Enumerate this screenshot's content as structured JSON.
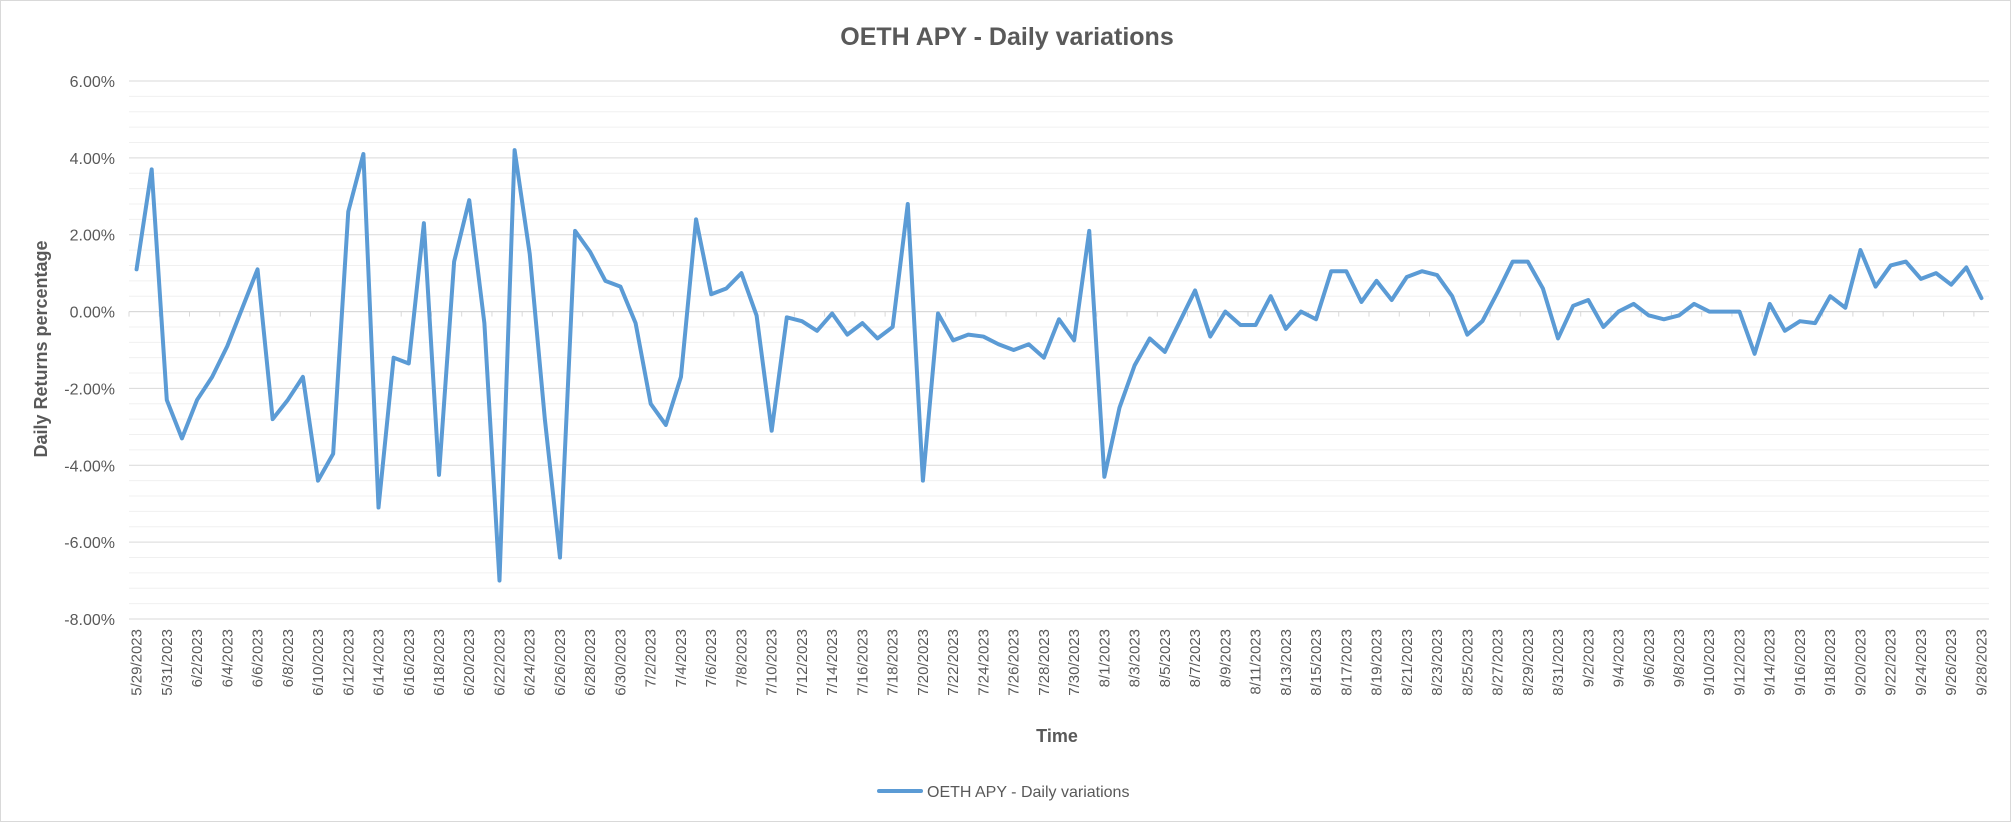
{
  "chart_data": {
    "type": "line",
    "title": "OETH APY - Daily variations",
    "xlabel": "Time",
    "ylabel": "Daily Returns percentage",
    "ylim": [
      -8,
      6
    ],
    "y_ticks": [
      6,
      4,
      2,
      0,
      -2,
      -4,
      -6,
      -8
    ],
    "y_tick_labels": [
      "6.00%",
      "4.00%",
      "2.00%",
      "0.00%",
      "-2.00%",
      "-4.00%",
      "-6.00%",
      "-8.00%"
    ],
    "y_unit": "%",
    "grid": "horizontal major and minor gridlines",
    "legend": "bottom-center",
    "color": "#5B9BD5",
    "x_start": "5/29/2023",
    "x_end": "9/28/2023",
    "x_tick_labels": [
      "5/29/2023",
      "5/31/2023",
      "6/2/2023",
      "6/4/2023",
      "6/6/2023",
      "6/8/2023",
      "6/10/2023",
      "6/12/2023",
      "6/14/2023",
      "6/16/2023",
      "6/18/2023",
      "6/20/2023",
      "6/22/2023",
      "6/24/2023",
      "6/26/2023",
      "6/28/2023",
      "6/30/2023",
      "7/2/2023",
      "7/4/2023",
      "7/6/2023",
      "7/8/2023",
      "7/10/2023",
      "7/12/2023",
      "7/14/2023",
      "7/16/2023",
      "7/18/2023",
      "7/20/2023",
      "7/22/2023",
      "7/24/2023",
      "7/26/2023",
      "7/28/2023",
      "7/30/2023",
      "8/1/2023",
      "8/3/2023",
      "8/5/2023",
      "8/7/2023",
      "8/9/2023",
      "8/11/2023",
      "8/13/2023",
      "8/15/2023",
      "8/17/2023",
      "8/19/2023",
      "8/21/2023",
      "8/23/2023",
      "8/25/2023",
      "8/27/2023",
      "8/29/2023",
      "8/31/2023",
      "9/2/2023",
      "9/4/2023",
      "9/6/2023",
      "9/8/2023",
      "9/10/2023",
      "9/12/2023",
      "9/14/2023",
      "9/16/2023",
      "9/18/2023",
      "9/20/2023",
      "9/22/2023",
      "9/24/2023",
      "9/26/2023",
      "9/28/2023"
    ],
    "series": [
      {
        "name": "OETH APY - Daily variations",
        "values": [
          1.1,
          3.7,
          -2.3,
          -3.3,
          -2.3,
          -1.7,
          -0.9,
          0.1,
          1.1,
          -2.8,
          -2.3,
          -1.7,
          -4.4,
          -3.7,
          2.6,
          4.1,
          -5.1,
          -1.2,
          -1.35,
          2.3,
          -4.25,
          1.3,
          2.9,
          -0.3,
          -7.0,
          4.2,
          1.5,
          -2.8,
          -6.4,
          2.1,
          1.55,
          0.8,
          0.65,
          -0.3,
          -2.4,
          -2.95,
          -1.7,
          2.4,
          0.45,
          0.6,
          1.0,
          -0.1,
          -3.1,
          -0.15,
          -0.25,
          -0.5,
          -0.05,
          -0.6,
          -0.3,
          -0.7,
          -0.4,
          2.8,
          -4.4,
          -0.05,
          -0.75,
          -0.6,
          -0.65,
          -0.85,
          -1.0,
          -0.85,
          -1.2,
          -0.2,
          -0.75,
          2.1,
          -4.3,
          -2.5,
          -1.4,
          -0.7,
          -1.05,
          -0.25,
          0.55,
          -0.65,
          0.0,
          -0.35,
          -0.35,
          0.4,
          -0.45,
          0.0,
          -0.2,
          1.05,
          1.05,
          0.25,
          0.8,
          0.3,
          0.9,
          1.05,
          0.95,
          0.4,
          -0.6,
          -0.25,
          0.5,
          1.3,
          1.3,
          0.6,
          -0.7,
          0.15,
          0.3,
          -0.4,
          0.0,
          0.2,
          -0.1,
          -0.2,
          -0.1,
          0.2,
          0.0,
          0.0,
          0.0,
          -1.1,
          0.2,
          -0.5,
          -0.25,
          -0.3,
          0.4,
          0.1,
          1.6,
          0.65,
          1.2,
          1.3,
          0.85,
          1.0,
          0.7,
          1.15,
          0.35
        ]
      }
    ]
  }
}
